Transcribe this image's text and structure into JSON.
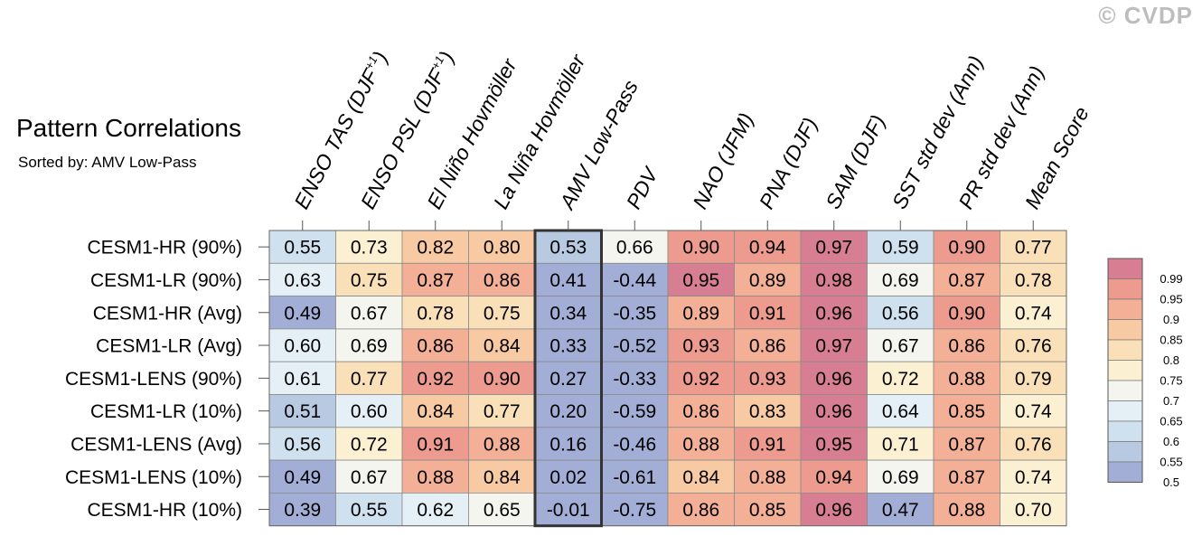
{
  "watermark": "© CVDP",
  "title": "Pattern Correlations",
  "subtitle": "Sorted by: AMV Low-Pass",
  "chart_data": {
    "type": "heatmap",
    "title": "Pattern Correlations",
    "subtitle": "Sorted by: AMV Low-Pass",
    "columns": [
      "ENSO TAS (DJF+1)",
      "ENSO PSL (DJF+1)",
      "El Niño Hovmöller",
      "La Niña Hovmöller",
      "AMV Low-Pass",
      "PDV",
      "NAO (JFM)",
      "PNA (DJF)",
      "SAM (DJF)",
      "SST std dev (Ann)",
      "PR std dev (Ann)",
      "Mean Score"
    ],
    "column_labels": [
      {
        "main": "ENSO TAS (DJF",
        "sup": "+1",
        "tail": ")"
      },
      {
        "main": "ENSO PSL (DJF",
        "sup": "+1",
        "tail": ")"
      },
      {
        "main": "El Niño Hovmöller",
        "sup": "",
        "tail": ""
      },
      {
        "main": "La Niña Hovmöller",
        "sup": "",
        "tail": ""
      },
      {
        "main": "AMV Low-Pass",
        "sup": "",
        "tail": ""
      },
      {
        "main": "PDV",
        "sup": "",
        "tail": ""
      },
      {
        "main": "NAO (JFM)",
        "sup": "",
        "tail": ""
      },
      {
        "main": "PNA (DJF)",
        "sup": "",
        "tail": ""
      },
      {
        "main": "SAM (DJF)",
        "sup": "",
        "tail": ""
      },
      {
        "main": "SST std dev (Ann)",
        "sup": "",
        "tail": ""
      },
      {
        "main": "PR std dev (Ann)",
        "sup": "",
        "tail": ""
      },
      {
        "main": "Mean Score",
        "sup": "",
        "tail": ""
      }
    ],
    "rows": [
      "CESM1-HR (90%)",
      "CESM1-LR (90%)",
      "CESM1-HR (Avg)",
      "CESM1-LR (Avg)",
      "CESM1-LENS (90%)",
      "CESM1-LR (10%)",
      "CESM1-LENS (Avg)",
      "CESM1-LENS (10%)",
      "CESM1-HR (10%)"
    ],
    "values": [
      [
        0.55,
        0.73,
        0.82,
        0.8,
        0.53,
        0.66,
        0.9,
        0.94,
        0.97,
        0.59,
        0.9,
        0.77
      ],
      [
        0.63,
        0.75,
        0.87,
        0.86,
        0.41,
        -0.44,
        0.95,
        0.89,
        0.98,
        0.69,
        0.87,
        0.78
      ],
      [
        0.49,
        0.67,
        0.78,
        0.75,
        0.34,
        -0.35,
        0.89,
        0.91,
        0.96,
        0.56,
        0.9,
        0.74
      ],
      [
        0.6,
        0.69,
        0.86,
        0.84,
        0.33,
        -0.52,
        0.93,
        0.86,
        0.97,
        0.67,
        0.86,
        0.76
      ],
      [
        0.61,
        0.77,
        0.92,
        0.9,
        0.27,
        -0.33,
        0.92,
        0.93,
        0.96,
        0.72,
        0.88,
        0.79
      ],
      [
        0.51,
        0.6,
        0.84,
        0.77,
        0.2,
        -0.59,
        0.86,
        0.83,
        0.96,
        0.64,
        0.85,
        0.74
      ],
      [
        0.56,
        0.72,
        0.91,
        0.88,
        0.16,
        -0.46,
        0.88,
        0.91,
        0.95,
        0.71,
        0.87,
        0.76
      ],
      [
        0.49,
        0.67,
        0.88,
        0.84,
        0.02,
        -0.61,
        0.84,
        0.88,
        0.94,
        0.69,
        0.87,
        0.74
      ],
      [
        0.39,
        0.55,
        0.62,
        0.65,
        -0.01,
        -0.75,
        0.86,
        0.85,
        0.96,
        0.47,
        0.88,
        0.7
      ]
    ],
    "sorted_by": "AMV Low-Pass",
    "highlighted_column": "AMV Low-Pass",
    "colorbar": {
      "levels": [
        0.5,
        0.55,
        0.6,
        0.65,
        0.7,
        0.75,
        0.8,
        0.85,
        0.9,
        0.95,
        0.99
      ],
      "labels": [
        "0.99",
        "0.95",
        "0.9",
        "0.85",
        "0.8",
        "0.75",
        "0.7",
        "0.65",
        "0.6",
        "0.55",
        "0.5"
      ],
      "colors": [
        "#a2aed5",
        "#b8cae2",
        "#cfe0ee",
        "#e4f0f6",
        "#f5f5ef",
        "#fbf0d1",
        "#fae0b8",
        "#f7caa3",
        "#f3b096",
        "#ec9b8e",
        "#d77e92"
      ]
    }
  }
}
